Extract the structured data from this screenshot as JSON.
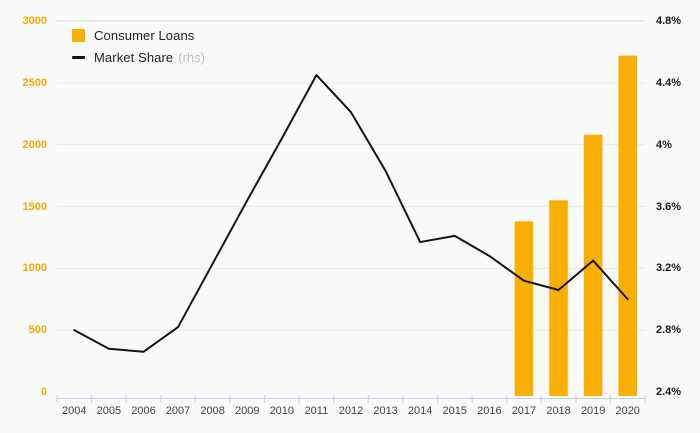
{
  "legend": {
    "items": [
      {
        "label": "Consumer Loans",
        "type": "bar",
        "color": "#f9af00"
      },
      {
        "label": "Market Share",
        "suffix": "(rhs)",
        "type": "line",
        "color": "#141414"
      }
    ]
  },
  "chart_data": {
    "type": "combo-bar-line",
    "categories": [
      "2004",
      "2005",
      "2006",
      "2007",
      "2008",
      "2009",
      "2010",
      "2011",
      "2012",
      "2013",
      "2014",
      "2015",
      "2016",
      "2017",
      "2018",
      "2019",
      "2020"
    ],
    "series": [
      {
        "name": "Consumer Loans",
        "type": "bar",
        "yaxis": "left",
        "color": "#f9af00",
        "values": [
          null,
          null,
          null,
          null,
          null,
          null,
          null,
          null,
          null,
          null,
          null,
          null,
          null,
          1380,
          1550,
          2080,
          2720
        ]
      },
      {
        "name": "Market Share (rhs)",
        "type": "line",
        "yaxis": "right",
        "color": "#141414",
        "values": [
          2.8,
          2.68,
          2.66,
          2.82,
          3.23,
          3.64,
          4.04,
          4.45,
          4.21,
          3.83,
          3.37,
          3.41,
          3.28,
          3.12,
          3.06,
          3.25,
          3.0
        ]
      }
    ],
    "left_axis": {
      "min": 0,
      "max": 3000,
      "tick_step": 500,
      "ticks": [
        "0",
        "500",
        "1000",
        "1500",
        "2000",
        "2500",
        "3000"
      ],
      "label_color": "#f9a700"
    },
    "right_axis": {
      "min": 2.4,
      "max": 4.8,
      "tick_step": 0.4,
      "ticks": [
        "2.4%",
        "2.8%",
        "3.2%",
        "3.6%",
        "4%",
        "4.4%",
        "4.8%"
      ],
      "label_color": "#1a1a1a"
    },
    "grid": true,
    "legend_position": "top-left",
    "background": "#fafafa",
    "gridline_color": "#e9e9e9",
    "top_gridline_color": "#dedede",
    "category_axis_color": "#c4cee8"
  }
}
